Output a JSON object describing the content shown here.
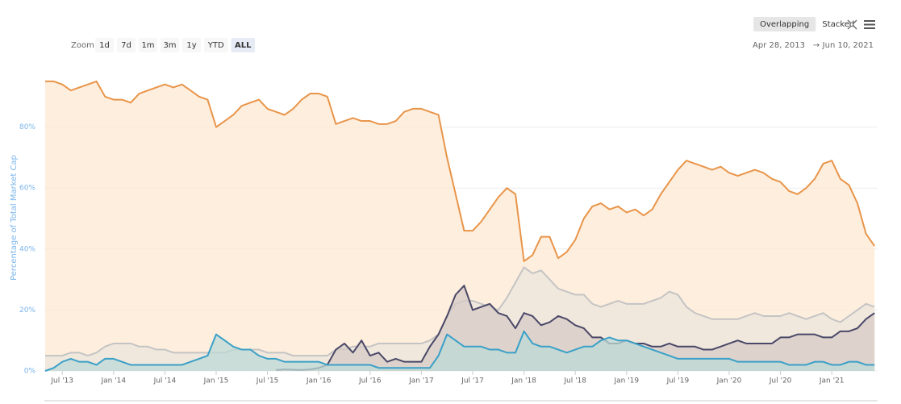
{
  "chart_data": {
    "type": "area",
    "y_label": "Percentage of Total Market Cap",
    "zoom": {
      "label": "Zoom",
      "buttons": [
        "1d",
        "7d",
        "1m",
        "3m",
        "1y",
        "YTD",
        "ALL"
      ],
      "active": "ALL"
    },
    "modes": {
      "buttons": [
        "Overlapping",
        "Stacked"
      ],
      "active": "Overlapping"
    },
    "range": {
      "from": "Apr 28, 2013",
      "separator": "→",
      "to": "Jun 10, 2021"
    },
    "categories": [
      null,
      null,
      "Jul '13",
      null,
      null,
      null,
      null,
      null,
      "Jan '14",
      null,
      null,
      null,
      null,
      null,
      "Jul '14",
      null,
      null,
      null,
      null,
      null,
      "Jan '15",
      null,
      null,
      null,
      null,
      null,
      "Jul '15",
      null,
      null,
      null,
      null,
      null,
      "Jan '16",
      null,
      null,
      null,
      null,
      null,
      "Jul '16",
      null,
      null,
      null,
      null,
      null,
      "Jan '17",
      null,
      null,
      null,
      null,
      null,
      "Jul '17",
      null,
      null,
      null,
      null,
      null,
      "Jan '18",
      null,
      null,
      null,
      null,
      null,
      "Jul '18",
      null,
      null,
      null,
      null,
      null,
      "Jan '19",
      null,
      null,
      null,
      null,
      null,
      "Jul '19",
      null,
      null,
      null,
      null,
      null,
      "Jan '20",
      null,
      null,
      null,
      null,
      null,
      "Jul '20",
      null,
      null,
      null,
      null,
      null,
      "Jan '21",
      null,
      null,
      null,
      null,
      null
    ],
    "ylim": [
      0,
      100
    ],
    "yticks": [
      {
        "value": 0,
        "label": "0%"
      },
      {
        "value": 20,
        "label": "20%"
      },
      {
        "value": 40,
        "label": "40%"
      },
      {
        "value": 60,
        "label": "60%"
      },
      {
        "value": 80,
        "label": "80%"
      }
    ],
    "grid": true,
    "series": [
      {
        "color": "#e8954a",
        "fill": "#fde8d2",
        "values": [
          95,
          95,
          94,
          92,
          93,
          94,
          95,
          90,
          89,
          89,
          88,
          91,
          92,
          93,
          94,
          93,
          94,
          92,
          90,
          89,
          80,
          82,
          84,
          87,
          88,
          89,
          86,
          85,
          84,
          86,
          89,
          91,
          91,
          90,
          81,
          82,
          83,
          82,
          82,
          81,
          81,
          82,
          85,
          86,
          86,
          85,
          84,
          70,
          58,
          46,
          46,
          49,
          53,
          57,
          60,
          58,
          36,
          38,
          44,
          44,
          37,
          39,
          43,
          50,
          54,
          55,
          53,
          54,
          52,
          53,
          51,
          53,
          58,
          62,
          66,
          69,
          68,
          67,
          66,
          67,
          65,
          64,
          65,
          66,
          65,
          63,
          62,
          59,
          58,
          60,
          63,
          68,
          69,
          63,
          61,
          55,
          45,
          41
        ]
      },
      {
        "color": "#c4c4c4",
        "fill": "#ece6dc",
        "values": [
          5,
          5,
          5,
          6,
          6,
          5,
          6,
          8,
          9,
          9,
          9,
          8,
          8,
          7,
          7,
          6,
          6,
          6,
          6,
          6,
          6,
          6,
          7,
          7,
          7,
          7,
          6,
          6,
          6,
          5,
          5,
          5,
          5,
          5,
          7,
          7,
          8,
          8,
          8,
          9,
          9,
          9,
          9,
          9,
          9,
          10,
          12,
          18,
          22,
          23,
          23,
          22,
          21,
          20,
          24,
          29,
          34,
          32,
          33,
          30,
          27,
          26,
          25,
          25,
          22,
          21,
          22,
          23,
          22,
          22,
          22,
          23,
          24,
          26,
          25,
          21,
          19,
          18,
          17,
          17,
          17,
          17,
          18,
          19,
          18,
          18,
          18,
          19,
          18,
          17,
          18,
          19,
          17,
          16,
          18,
          20,
          22,
          21
        ]
      },
      {
        "color": "#4a4868",
        "fill": "#d6cbc6",
        "values": [
          null,
          null,
          null,
          null,
          null,
          null,
          null,
          null,
          null,
          null,
          null,
          null,
          null,
          null,
          null,
          null,
          null,
          null,
          null,
          null,
          null,
          null,
          null,
          null,
          null,
          null,
          null,
          0.3,
          0.5,
          0.4,
          0.3,
          0.5,
          1,
          2,
          7,
          9,
          6,
          10,
          5,
          6,
          3,
          4,
          3,
          3,
          3,
          8,
          12,
          18,
          25,
          28,
          20,
          21,
          22,
          19,
          18,
          14,
          19,
          18,
          15,
          16,
          18,
          17,
          15,
          14,
          11,
          11,
          9,
          9,
          10,
          9,
          9,
          8,
          8,
          9,
          8,
          8,
          8,
          7,
          7,
          8,
          9,
          10,
          9,
          9,
          9,
          9,
          11,
          11,
          12,
          12,
          12,
          11,
          11,
          13,
          13,
          14,
          17,
          19
        ]
      },
      {
        "color": "#3aa0c8",
        "fill": "#bcd9d6",
        "values": [
          0,
          1,
          3,
          4,
          3,
          3,
          2,
          4,
          4,
          3,
          2,
          2,
          2,
          2,
          2,
          2,
          2,
          3,
          4,
          5,
          12,
          10,
          8,
          7,
          7,
          5,
          4,
          4,
          3,
          3,
          3,
          3,
          3,
          2,
          2,
          2,
          2,
          2,
          2,
          1,
          1,
          1,
          1,
          1,
          1,
          1,
          5,
          12,
          10,
          8,
          8,
          8,
          7,
          7,
          6,
          6,
          13,
          9,
          8,
          8,
          7,
          6,
          7,
          8,
          8,
          10,
          11,
          10,
          10,
          9,
          8,
          7,
          6,
          5,
          4,
          4,
          4,
          4,
          4,
          4,
          4,
          3,
          3,
          3,
          3,
          3,
          3,
          2,
          2,
          2,
          3,
          3,
          2,
          2,
          3,
          3,
          2,
          2
        ]
      }
    ]
  }
}
